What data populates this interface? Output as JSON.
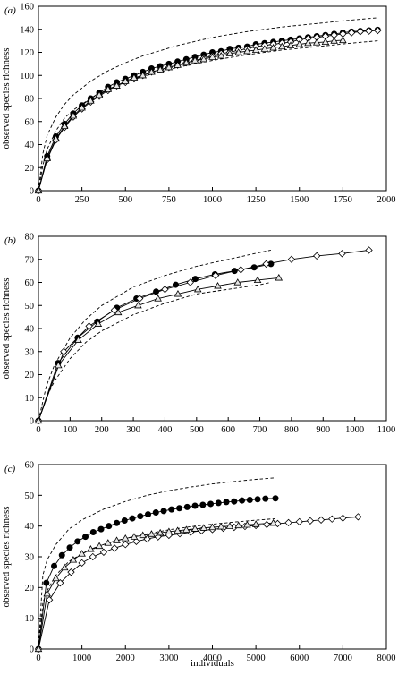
{
  "xlabel": "individuals",
  "ylabel": "observed species richness",
  "chart_data": [
    {
      "type": "line",
      "panel_label": "(a)",
      "xlabel": "",
      "ylabel": "observed species richness",
      "xlim": [
        0,
        2000
      ],
      "ylim": [
        0,
        160
      ],
      "xticks": [
        "0",
        "250",
        "500",
        "750",
        "1000",
        "1250",
        "1500",
        "1750",
        "2000"
      ],
      "yticks": [
        "0",
        "20",
        "40",
        "60",
        "80",
        "100",
        "120",
        "140",
        "160"
      ],
      "series": [
        {
          "marker": "filled-circle",
          "x": [
            0,
            50,
            100,
            150,
            200,
            250,
            300,
            350,
            400,
            450,
            500,
            550,
            600,
            650,
            700,
            750,
            800,
            850,
            900,
            950,
            1000,
            1050,
            1100,
            1150,
            1200,
            1250,
            1300,
            1350,
            1400,
            1450,
            1500,
            1550,
            1600,
            1650,
            1700,
            1750,
            1800,
            1850,
            1900,
            1950
          ],
          "y": [
            0,
            30,
            47,
            58,
            67,
            74,
            80,
            85,
            90,
            94,
            97,
            100,
            103,
            106,
            108,
            110,
            112,
            114,
            116,
            118,
            120,
            121,
            123,
            124,
            125,
            127,
            128,
            129,
            130,
            131,
            132,
            133,
            134,
            135,
            136,
            137,
            138,
            138.5,
            139,
            139.5
          ]
        },
        {
          "marker": "open-diamond",
          "x": [
            0,
            50,
            100,
            150,
            200,
            250,
            300,
            350,
            400,
            450,
            500,
            550,
            600,
            650,
            700,
            750,
            800,
            850,
            900,
            950,
            1000,
            1050,
            1100,
            1150,
            1200,
            1250,
            1300,
            1350,
            1400,
            1450,
            1500,
            1550,
            1600,
            1650,
            1700,
            1750,
            1800,
            1850,
            1900,
            1950
          ],
          "y": [
            0,
            27,
            44,
            55,
            64,
            71,
            77,
            82,
            87,
            91,
            94,
            97,
            100,
            103,
            105,
            107,
            109,
            111,
            113,
            115,
            117,
            119,
            120,
            122,
            123,
            125,
            126,
            127,
            128,
            129,
            131,
            132,
            133,
            134,
            135,
            136,
            137,
            138,
            138.5,
            139
          ]
        },
        {
          "marker": "open-triangle",
          "x": [
            0,
            50,
            100,
            150,
            200,
            250,
            300,
            350,
            400,
            450,
            500,
            550,
            600,
            650,
            700,
            750,
            800,
            850,
            900,
            950,
            1000,
            1050,
            1100,
            1150,
            1200,
            1250,
            1300,
            1350,
            1400,
            1450,
            1500,
            1550,
            1600,
            1650,
            1700,
            1750
          ],
          "y": [
            0,
            28,
            45,
            56,
            65,
            72,
            78,
            83,
            88,
            91,
            95,
            98,
            100,
            103,
            105,
            107,
            109,
            111,
            113,
            114,
            116,
            117,
            119,
            120,
            121,
            122,
            123,
            124,
            125,
            126,
            127,
            128,
            128.5,
            129,
            130,
            130.5
          ]
        },
        {
          "style": "dashed",
          "x": [
            0,
            25,
            50,
            100,
            150,
            200,
            300,
            400,
            500,
            600,
            800,
            1000,
            1200,
            1400,
            1600,
            1800,
            1950
          ],
          "y": [
            0,
            32,
            48,
            64,
            75,
            83,
            95,
            104,
            111,
            117,
            126,
            133,
            138,
            142,
            145,
            148,
            150
          ]
        },
        {
          "style": "dashed",
          "x": [
            0,
            25,
            50,
            100,
            150,
            200,
            300,
            400,
            500,
            600,
            800,
            1000,
            1200,
            1400,
            1600,
            1800,
            1950
          ],
          "y": [
            0,
            22,
            36,
            52,
            63,
            70,
            80,
            88,
            94,
            99,
            107,
            113,
            118,
            122,
            125,
            128,
            130
          ]
        }
      ]
    },
    {
      "type": "line",
      "panel_label": "(b)",
      "xlabel": "",
      "ylabel": "observed species richness",
      "xlim": [
        0,
        1100
      ],
      "ylim": [
        0,
        80
      ],
      "xticks": [
        "0",
        "100",
        "200",
        "300",
        "400",
        "500",
        "600",
        "700",
        "800",
        "900",
        "1000",
        "1100"
      ],
      "yticks": [
        "0",
        "10",
        "20",
        "30",
        "40",
        "50",
        "60",
        "70",
        "80"
      ],
      "series": [
        {
          "marker": "filled-circle",
          "x": [
            0,
            62,
            124,
            186,
            248,
            310,
            372,
            434,
            496,
            558,
            620,
            682,
            735
          ],
          "y": [
            0,
            25,
            36,
            43,
            49,
            53,
            56,
            59,
            61.5,
            63.5,
            65,
            66.5,
            68
          ]
        },
        {
          "marker": "open-diamond",
          "x": [
            0,
            80,
            160,
            240,
            320,
            400,
            480,
            560,
            640,
            720,
            800,
            880,
            960,
            1045
          ],
          "y": [
            0,
            30,
            41,
            48,
            53,
            57,
            60,
            63,
            65.5,
            68,
            70,
            71.5,
            72.5,
            74
          ]
        },
        {
          "marker": "open-triangle",
          "x": [
            0,
            63,
            126,
            189,
            252,
            315,
            378,
            441,
            504,
            567,
            630,
            693,
            760
          ],
          "y": [
            0,
            24,
            35,
            42,
            47,
            50,
            53,
            55,
            57,
            58.5,
            60,
            61,
            62
          ]
        },
        {
          "style": "dashed",
          "x": [
            0,
            25,
            50,
            100,
            150,
            200,
            300,
            400,
            500,
            600,
            700,
            735
          ],
          "y": [
            0,
            15,
            24,
            36,
            44,
            50,
            58,
            63,
            67,
            70,
            73,
            74
          ]
        },
        {
          "style": "dashed",
          "x": [
            0,
            25,
            50,
            100,
            150,
            200,
            300,
            400,
            500,
            600,
            700,
            735
          ],
          "y": [
            0,
            10,
            17,
            27,
            34,
            39,
            46,
            51,
            55,
            57,
            59,
            60
          ]
        }
      ]
    },
    {
      "type": "line",
      "panel_label": "(c)",
      "xlabel": "individuals",
      "ylabel": "observed species richness",
      "xlim": [
        0,
        8000
      ],
      "ylim": [
        0,
        60
      ],
      "xticks": [
        "0",
        "1000",
        "2000",
        "3000",
        "4000",
        "5000",
        "6000",
        "7000",
        "8000"
      ],
      "yticks": [
        "0",
        "10",
        "20",
        "30",
        "40",
        "50",
        "60"
      ],
      "series": [
        {
          "marker": "filled-circle",
          "x": [
            0,
            180,
            360,
            540,
            720,
            900,
            1080,
            1260,
            1440,
            1620,
            1800,
            1980,
            2160,
            2340,
            2520,
            2700,
            2880,
            3060,
            3240,
            3420,
            3600,
            3780,
            3960,
            4140,
            4320,
            4500,
            4680,
            4860,
            5040,
            5220,
            5450
          ],
          "y": [
            0,
            21.5,
            27,
            30.5,
            33,
            35,
            36.5,
            38,
            39,
            40,
            41,
            41.8,
            42.5,
            43.2,
            43.8,
            44.4,
            44.9,
            45.4,
            45.8,
            46.2,
            46.6,
            46.9,
            47.2,
            47.5,
            47.8,
            48,
            48.3,
            48.5,
            48.7,
            48.9,
            49
          ]
        },
        {
          "marker": "open-diamond",
          "x": [
            0,
            250,
            500,
            750,
            1000,
            1250,
            1500,
            1750,
            2000,
            2250,
            2500,
            2750,
            3000,
            3250,
            3500,
            3750,
            4000,
            4250,
            4500,
            4750,
            5000,
            5250,
            5500,
            5750,
            6000,
            6250,
            6500,
            6750,
            7000,
            7350
          ],
          "y": [
            0,
            16,
            21.5,
            25,
            28,
            30,
            31.5,
            32.8,
            34,
            35,
            35.8,
            36.5,
            37,
            37.5,
            38,
            38.5,
            38.9,
            39.3,
            39.6,
            39.9,
            40.2,
            40.5,
            40.8,
            41.1,
            41.4,
            41.7,
            42,
            42.3,
            42.6,
            43
          ]
        },
        {
          "marker": "open-triangle",
          "x": [
            0,
            200,
            400,
            600,
            800,
            1000,
            1200,
            1400,
            1600,
            1800,
            2000,
            2200,
            2400,
            2600,
            2800,
            3000,
            3200,
            3400,
            3600,
            3800,
            4000,
            4200,
            4400,
            4600,
            4800,
            5000,
            5400
          ],
          "y": [
            0,
            18,
            23,
            26.5,
            29,
            31,
            32.5,
            33.5,
            34.5,
            35.3,
            36,
            36.5,
            37,
            37.4,
            37.8,
            38.2,
            38.5,
            38.8,
            39.1,
            39.4,
            39.6,
            39.8,
            40,
            40.2,
            40.4,
            40.6,
            41
          ]
        },
        {
          "style": "dashed",
          "x": [
            0,
            100,
            200,
            400,
            700,
            1000,
            1500,
            2000,
            2500,
            3000,
            3500,
            4000,
            4500,
            5000,
            5450
          ],
          "y": [
            0,
            24,
            29,
            34,
            39,
            42,
            45.5,
            48,
            50,
            51.5,
            52.7,
            53.7,
            54.5,
            55.2,
            55.7
          ]
        },
        {
          "style": "dashed",
          "x": [
            0,
            100,
            200,
            400,
            700,
            1000,
            1500,
            2000,
            2500,
            3000,
            3500,
            4000,
            4500,
            5000,
            5450
          ],
          "y": [
            0,
            15,
            19,
            24,
            28.5,
            31,
            34,
            36,
            37.5,
            38.8,
            39.8,
            40.6,
            41.3,
            41.9,
            42.4
          ]
        }
      ]
    }
  ]
}
